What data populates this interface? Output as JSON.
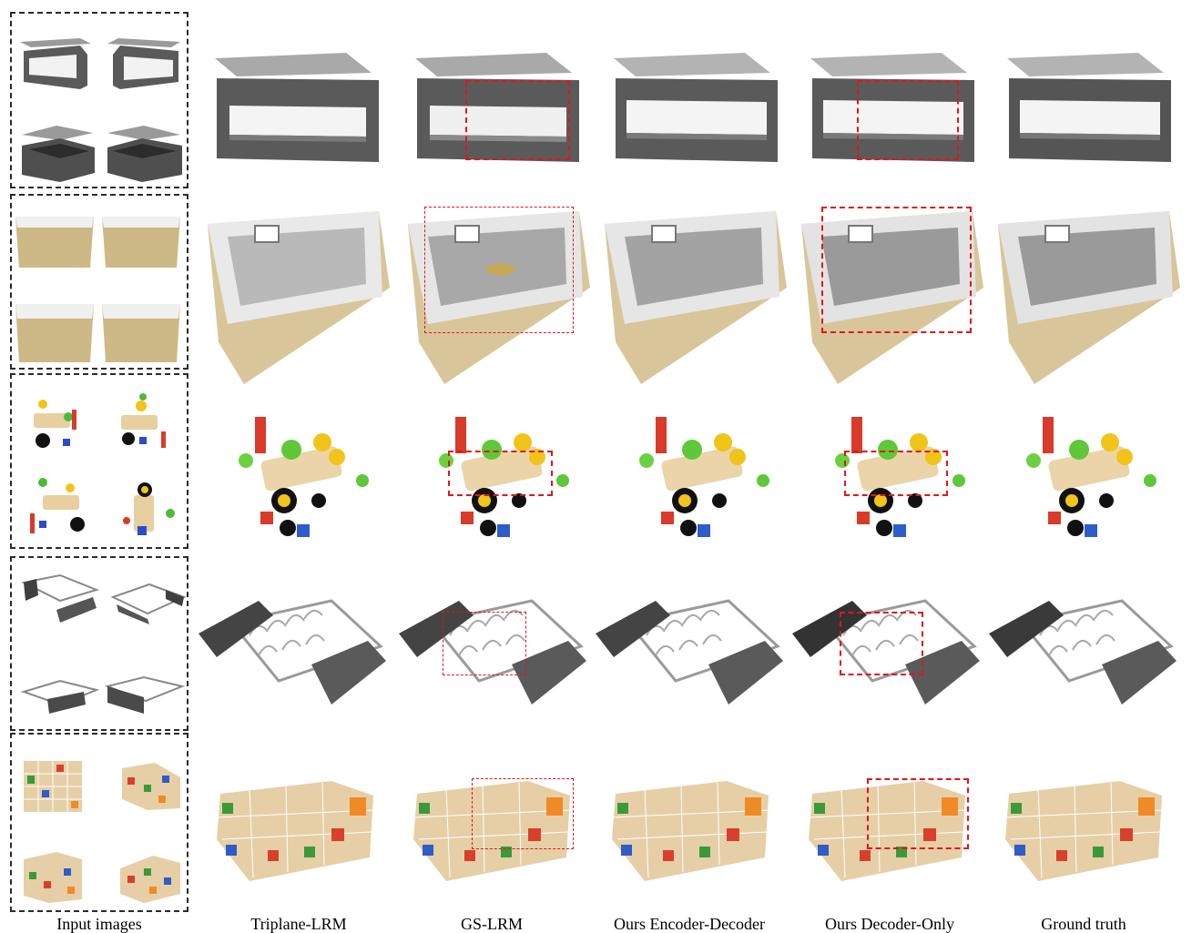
{
  "figure": {
    "columns": [
      {
        "key": "input",
        "label": "Input images"
      },
      {
        "key": "triplane",
        "label": "Triplane-LRM"
      },
      {
        "key": "gslrm",
        "label": "GS-LRM"
      },
      {
        "key": "encdec",
        "label": "Ours Encoder-Decoder"
      },
      {
        "key": "deconly",
        "label": "Ours Decoder-Only"
      },
      {
        "key": "gt",
        "label": "Ground truth"
      }
    ],
    "rows": [
      {
        "object": "lift-top table"
      },
      {
        "object": "woven basket"
      },
      {
        "object": "wooden toy"
      },
      {
        "object": "dish rack"
      },
      {
        "object": "alphabet blocks"
      }
    ],
    "highlight_color": "#e0161c"
  }
}
